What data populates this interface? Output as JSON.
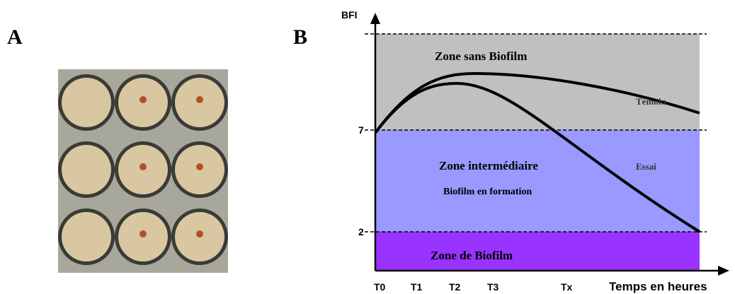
{
  "panel_a": {
    "label": "A"
  },
  "panel_b": {
    "label": "B",
    "y_label": "BFI",
    "y_ticks": [
      "7",
      "2"
    ],
    "x_ticks": [
      "T0",
      "T1",
      "T2",
      "T3",
      "Tx"
    ],
    "x_label": "Temps en heures",
    "zones": {
      "top": "Zone sans Biofilm",
      "middle": "Zone intermédiaire",
      "middle_sub": "Biofilm en formation",
      "bottom": "Zone de Biofilm"
    },
    "curves": {
      "control": "Témoin",
      "test": "Essai"
    }
  }
}
